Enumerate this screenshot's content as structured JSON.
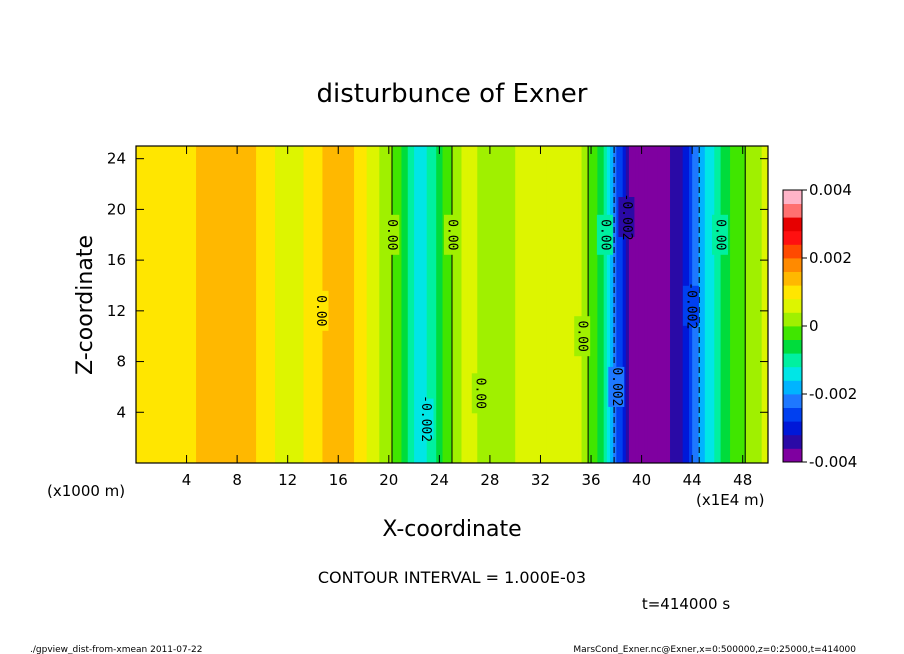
{
  "chart_data": {
    "type": "heatmap",
    "title": "disturbunce of Exner",
    "xlabel": "X-coordinate",
    "ylabel": "Z-coordinate",
    "x_unit_label": "(x1000 m)",
    "x_unit_label_right": "(x1E4 m)",
    "x_ticks": [
      "4",
      "8",
      "12",
      "16",
      "20",
      "24",
      "28",
      "32",
      "36",
      "40",
      "44",
      "48"
    ],
    "y_ticks": [
      "4",
      "8",
      "12",
      "16",
      "20",
      "24"
    ],
    "xlim": [
      0,
      50
    ],
    "ylim": [
      0,
      25
    ],
    "colorbar": {
      "ticks": [
        "0.004",
        "0.002",
        "0",
        "-0.002",
        "-0.004"
      ],
      "range": [
        -0.004,
        0.004
      ],
      "colors": [
        "#7f00a0",
        "#2a0aa6",
        "#0018d8",
        "#0040f0",
        "#1e78ff",
        "#00b4ff",
        "#00e6e6",
        "#00f0a0",
        "#00dc3c",
        "#40e600",
        "#a0f000",
        "#ddf500",
        "#ffe600",
        "#ffb800",
        "#ff8a00",
        "#ff4a00",
        "#ff1010",
        "#e60000",
        "#ff7070",
        "#ffb4c8"
      ]
    },
    "contour_interval": "CONTOUR INTERVAL = 1.000E-03",
    "contour_labels": [
      "0.00",
      "0.00",
      "0.00",
      "0.00",
      "0.00",
      "0.00",
      "0.00",
      "-0.002",
      "-0.002",
      "-0.002",
      "0.002"
    ],
    "field_profile": {
      "x": [
        0,
        4,
        7.5,
        10,
        12,
        14.5,
        16,
        18,
        20.5,
        22.5,
        24.5,
        26,
        28,
        30,
        32.5,
        35,
        37,
        39,
        41,
        43,
        45,
        47,
        50
      ],
      "level": [
        0.0008,
        0.0011,
        0.0016,
        0.0011,
        0.0005,
        0.0011,
        0.0016,
        0.0009,
        -0.0001,
        -0.0016,
        -0.0003,
        0.0006,
        0.0002,
        0.0004,
        0.0008,
        0.0005,
        -0.0008,
        -0.0037,
        -0.004,
        -0.0034,
        -0.0016,
        -0.0004,
        0.0006
      ]
    }
  },
  "footer": {
    "time": "t=414000 s",
    "left": "./gpview_dist-from-xmean  2011-07-22",
    "right": "MarsCond_Exner.nc@Exner,x=0:500000,z=0:25000,t=414000"
  }
}
